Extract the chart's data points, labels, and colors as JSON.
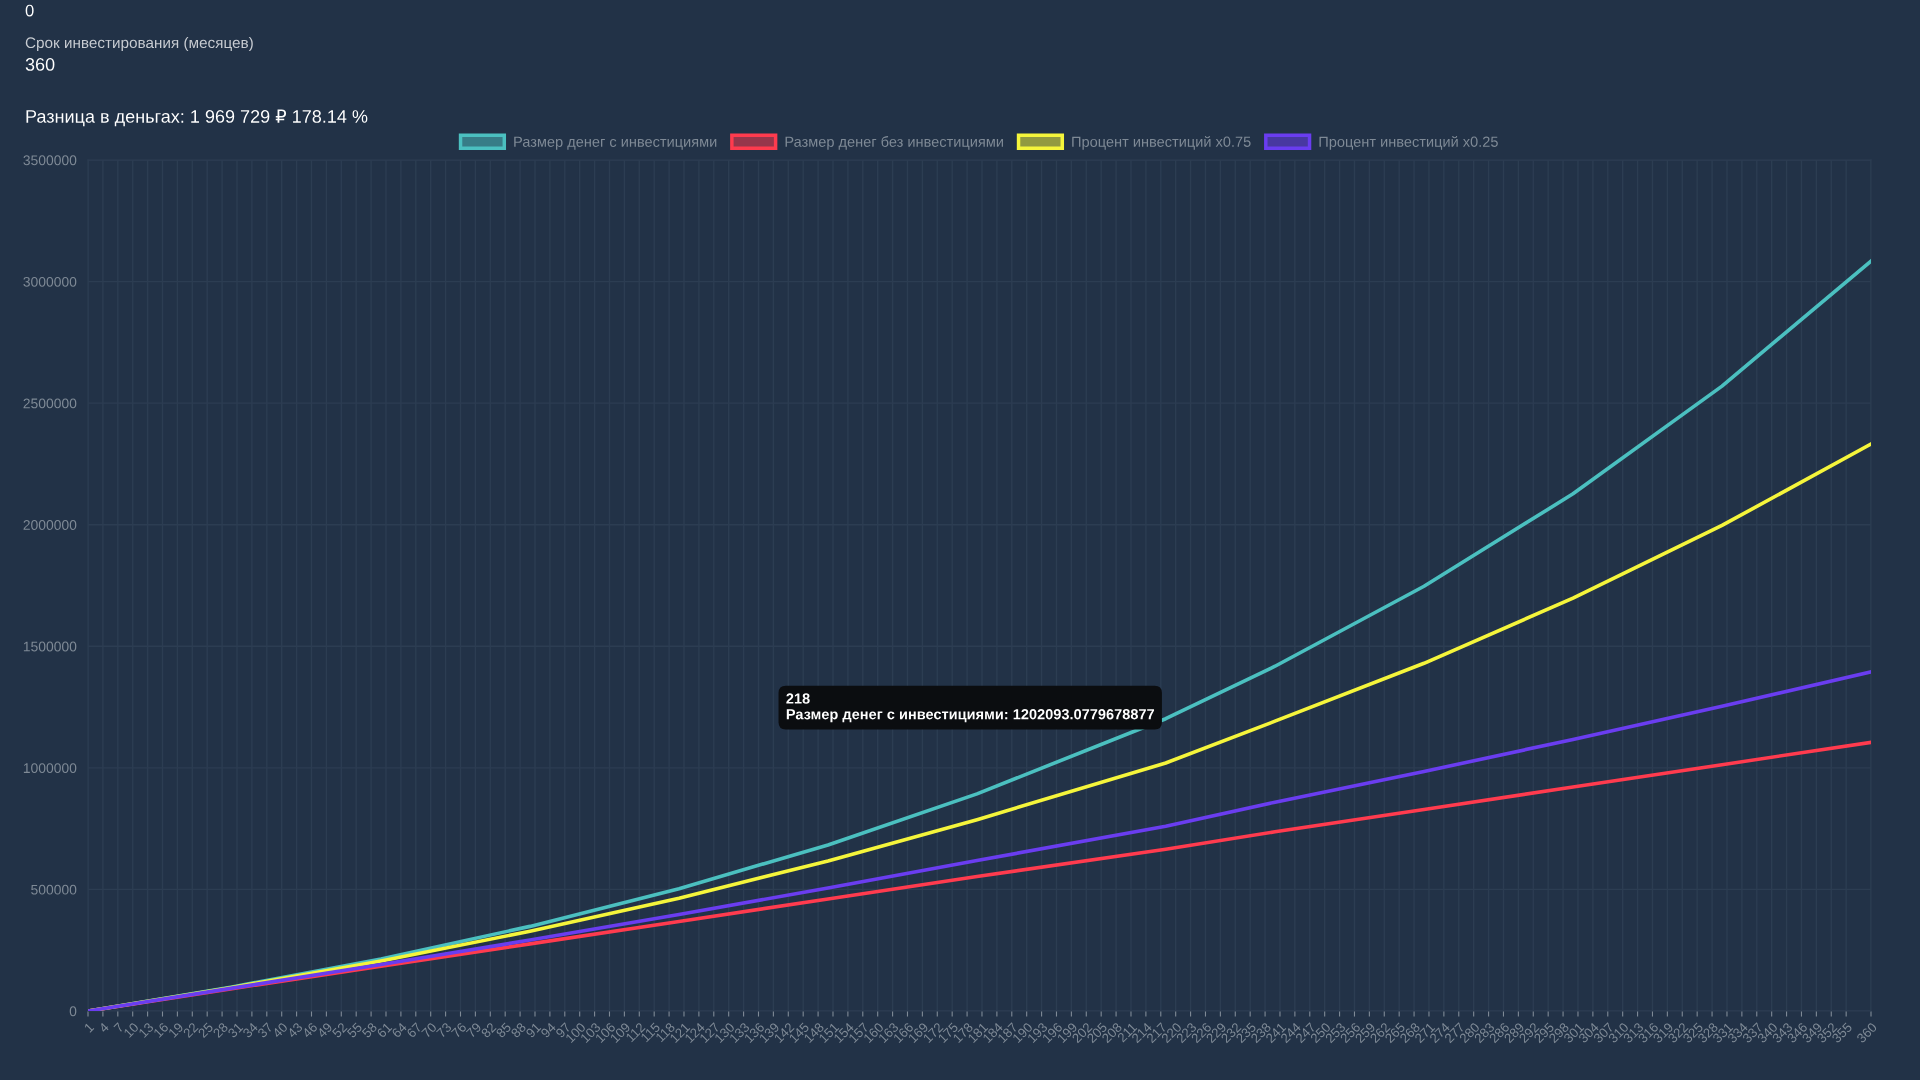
{
  "chart_data": {
    "type": "line",
    "legend": "top",
    "grid": true,
    "marker": "none",
    "line_style": "solid",
    "x": [
      1,
      30,
      60,
      90,
      120,
      150,
      180,
      218,
      240,
      270,
      300,
      330,
      360
    ],
    "xlim": [
      1,
      360
    ],
    "xticks": [
      1,
      4,
      7,
      10,
      13,
      16,
      19,
      22,
      25,
      28,
      31,
      34,
      37,
      40,
      43,
      46,
      49,
      52,
      55,
      58,
      61,
      64,
      67,
      70,
      73,
      76,
      79,
      82,
      85,
      88,
      91,
      94,
      97,
      100,
      103,
      106,
      109,
      112,
      115,
      118,
      121,
      124,
      127,
      130,
      133,
      136,
      139,
      142,
      145,
      148,
      151,
      154,
      157,
      160,
      163,
      166,
      169,
      172,
      175,
      178,
      181,
      184,
      187,
      190,
      193,
      196,
      199,
      202,
      205,
      208,
      211,
      214,
      217,
      220,
      223,
      226,
      229,
      232,
      235,
      238,
      241,
      244,
      247,
      250,
      253,
      256,
      259,
      262,
      265,
      268,
      271,
      274,
      277,
      280,
      283,
      286,
      289,
      292,
      295,
      298,
      301,
      304,
      307,
      310,
      313,
      316,
      319,
      322,
      325,
      328,
      331,
      334,
      337,
      340,
      343,
      346,
      349,
      352,
      355,
      360
    ],
    "ylim": [
      0,
      3500000
    ],
    "yticks": [
      0,
      500000,
      1000000,
      1500000,
      2000000,
      2500000,
      3000000,
      3500000
    ],
    "series": [
      {
        "name": "Размер денег с инвестициями",
        "color": "#4bc0c0",
        "values": [
          0,
          99000,
          214000,
          348000,
          503000,
          683000,
          893000,
          1202000,
          1418000,
          1747000,
          2127000,
          2570000,
          3084000
        ]
      },
      {
        "name": "Размер денег без инвестициями",
        "color": "#ff3b4e",
        "values": [
          0,
          92000,
          184000,
          276000,
          368000,
          461000,
          553000,
          665000,
          737000,
          829000,
          921000,
          1013000,
          1105000
        ]
      },
      {
        "name": "Процент инвестиций x0.75",
        "color": "#f5f53b",
        "values": [
          0,
          97000,
          206000,
          328000,
          464000,
          617000,
          787000,
          1020000,
          1192000,
          1430000,
          1698000,
          1997000,
          2332000
        ]
      },
      {
        "name": "Процент инвестиций x0.25",
        "color": "#6a3df0",
        "values": [
          0,
          94000,
          191000,
          292000,
          397000,
          506000,
          619000,
          760000,
          859000,
          985000,
          1117000,
          1253000,
          1395000
        ]
      }
    ],
    "annotations": [
      "0",
      "Срок инвестирования (месяцев)",
      "360",
      "Разница в деньгах: 1 969 729 ₽ 178.14 %",
      {
        "text": "218\nРазмер денег с инвестициями: 1202093.0779678877",
        "x": 218,
        "y": 1202000
      }
    ]
  }
}
